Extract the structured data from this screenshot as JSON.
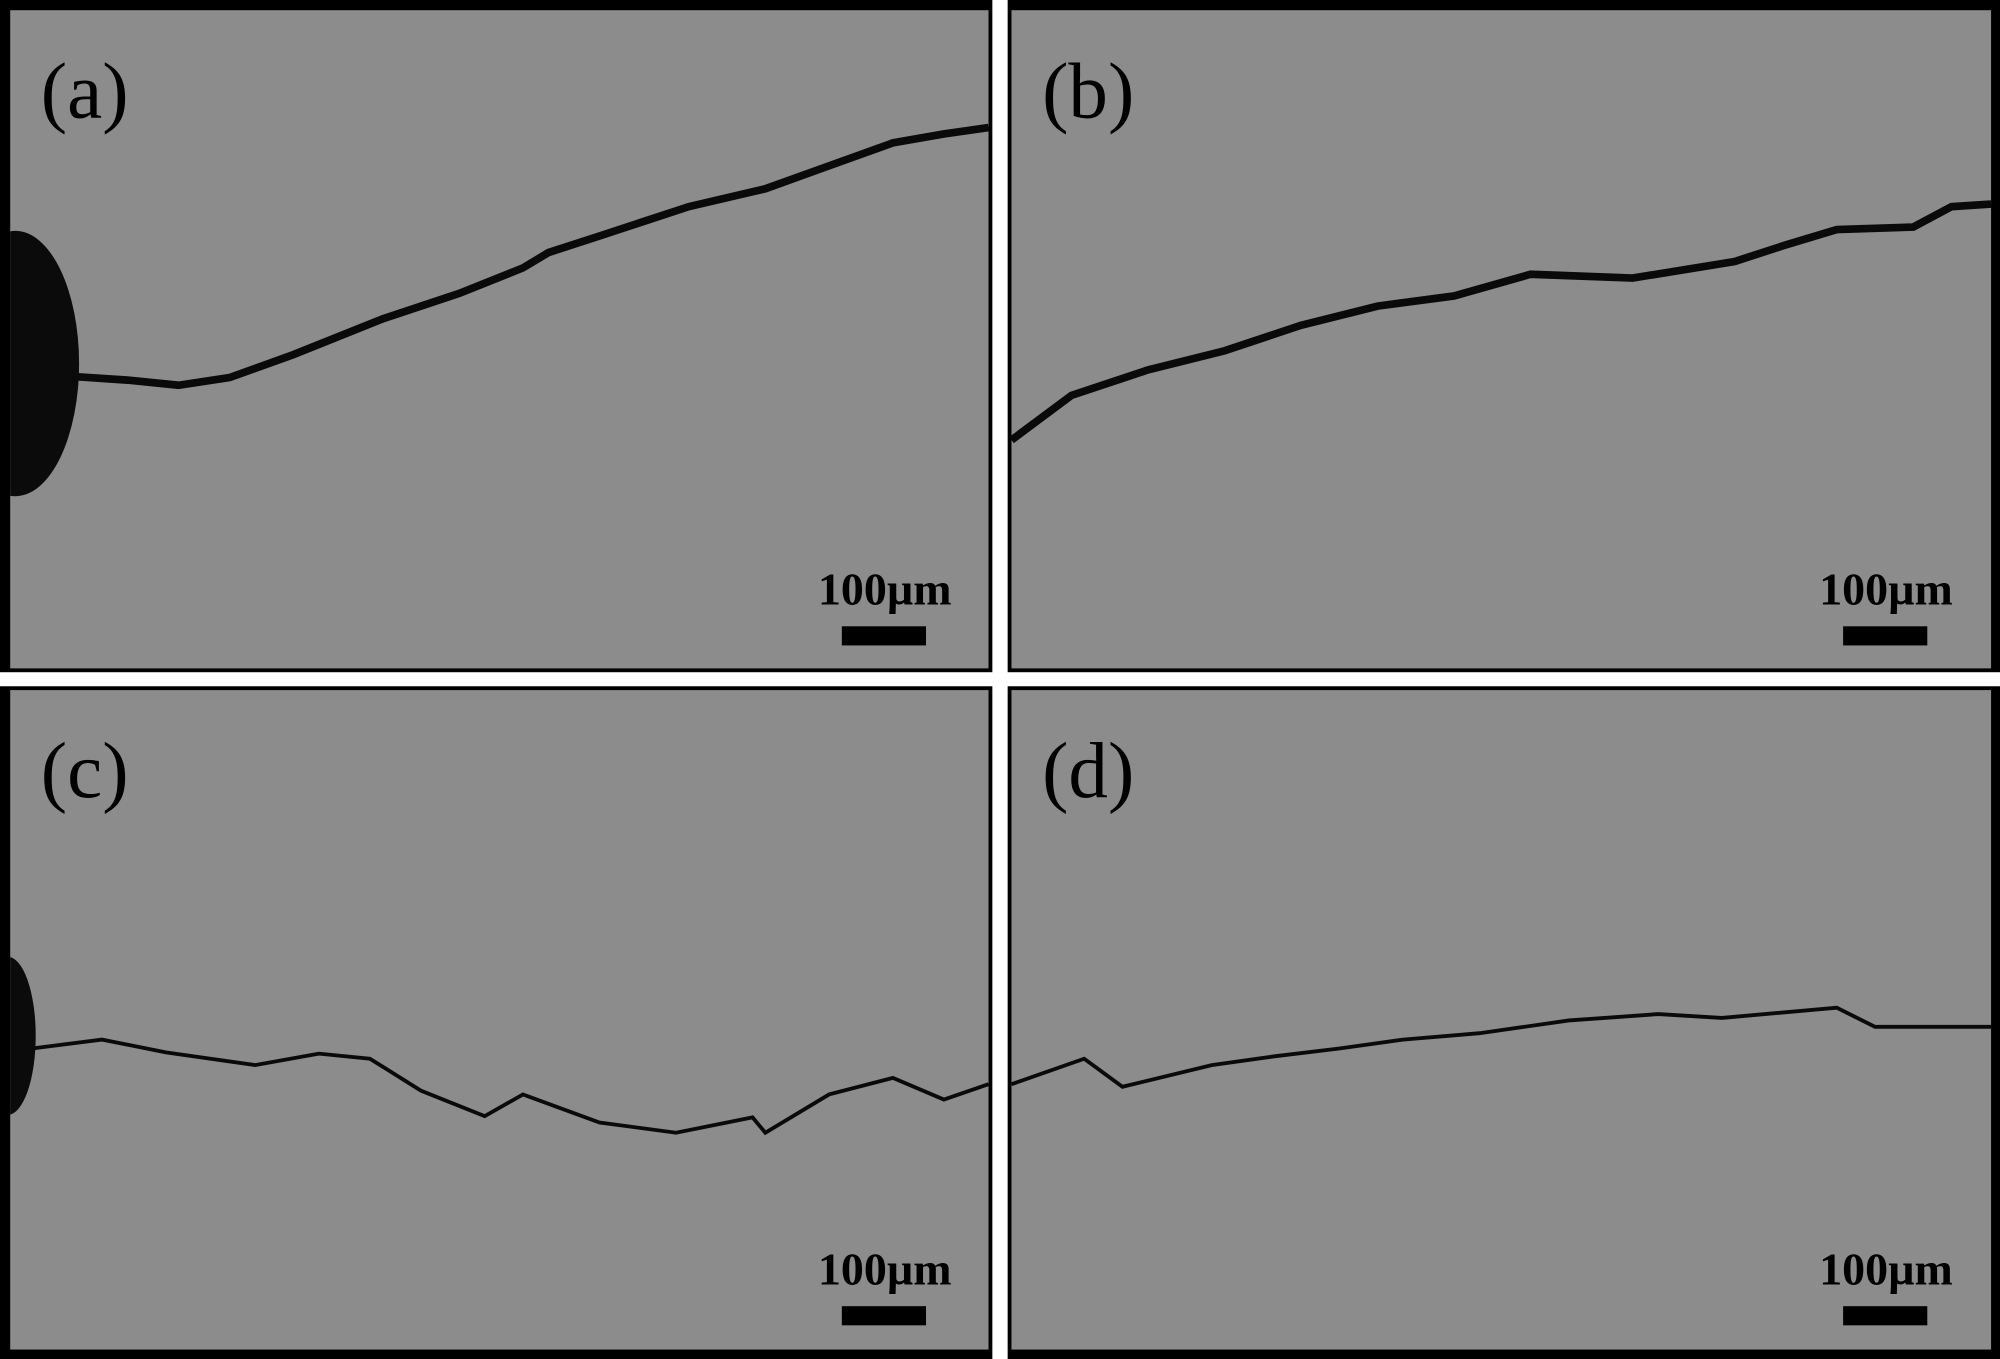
{
  "panels": [
    {
      "label": "(a)",
      "scale_bar": "100µm"
    },
    {
      "label": "(b)",
      "scale_bar": "100µm"
    },
    {
      "label": "(c)",
      "scale_bar": "100µm"
    },
    {
      "label": "(d)",
      "scale_bar": "100µm"
    }
  ]
}
